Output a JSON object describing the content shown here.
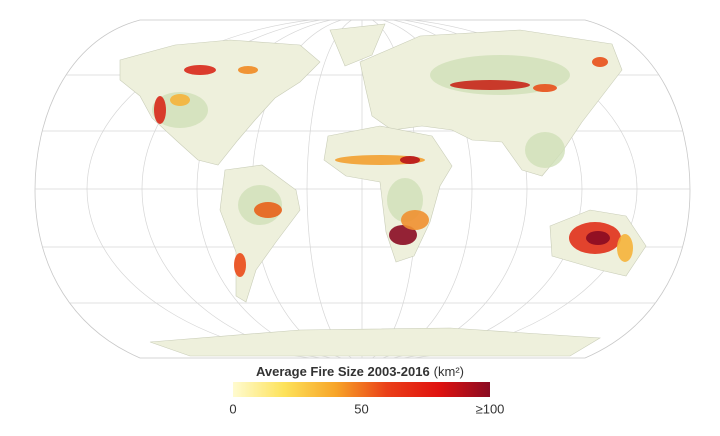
{
  "legend": {
    "title": "Average Fire Size 2003-2016",
    "unit": "(km²)",
    "range": [
      0,
      100
    ],
    "ticks": [
      0,
      50,
      {
        "value": 100,
        "label": "≥100"
      }
    ],
    "colors": [
      "#fffbd0",
      "#fde25a",
      "#f7a428",
      "#ea3f18",
      "#e0120f",
      "#8a0b22"
    ]
  }
}
